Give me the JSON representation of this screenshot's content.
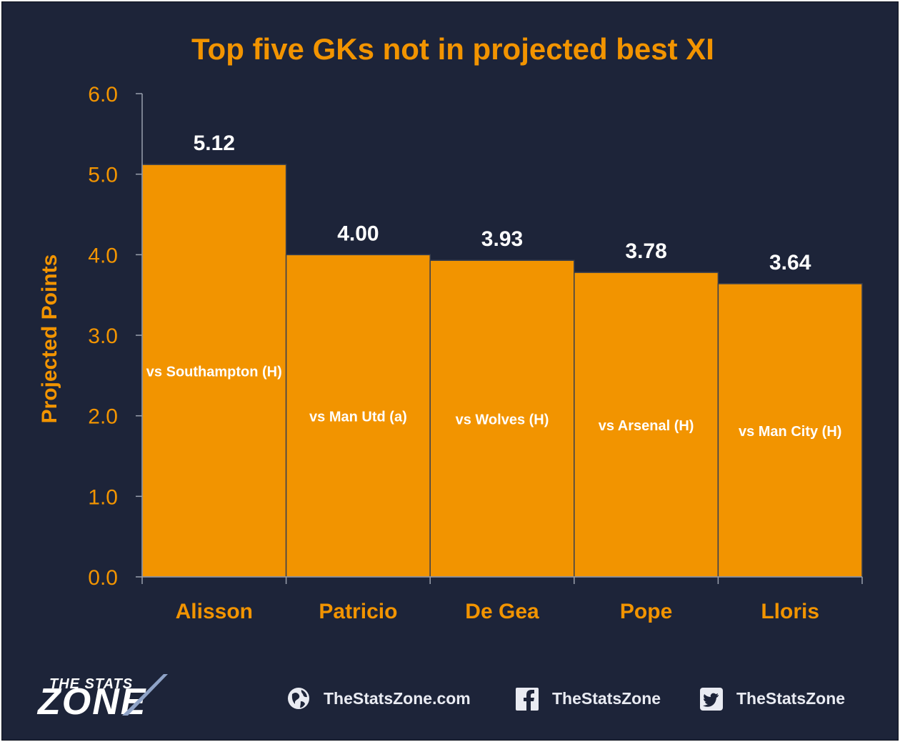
{
  "colors": {
    "background": "#1d2439",
    "bar": "#f29400",
    "bar_edge": "#3a3f4d",
    "accent_text": "#f29400",
    "value_text": "#ffffff",
    "axis": "#9aa0ad"
  },
  "chart_data": {
    "type": "bar",
    "title": "Top five GKs not in projected best XI",
    "ylabel": "Projected Points",
    "xlabel": "",
    "ylim": [
      0,
      6
    ],
    "yticks": [
      "0.0",
      "1.0",
      "2.0",
      "3.0",
      "4.0",
      "5.0",
      "6.0"
    ],
    "grid": false,
    "categories": [
      "Alisson",
      "Patricio",
      "De Gea",
      "Pope",
      "Lloris"
    ],
    "values": [
      5.12,
      4.0,
      3.93,
      3.78,
      3.64
    ],
    "data_labels": [
      "5.12",
      "4.00",
      "3.93",
      "3.78",
      "3.64"
    ],
    "annotations": [
      "vs Southampton (H)",
      "vs Man Utd (a)",
      "vs Wolves (H)",
      "vs Arsenal (H)",
      "vs Man City (H)"
    ]
  },
  "footer": {
    "logo_top": "THE STATS",
    "logo_main": "ZONE",
    "website": "TheStatsZone.com",
    "facebook": "TheStatsZone",
    "twitter": "TheStatsZone",
    "icons": [
      "globe-icon",
      "facebook-icon",
      "twitter-icon"
    ]
  }
}
